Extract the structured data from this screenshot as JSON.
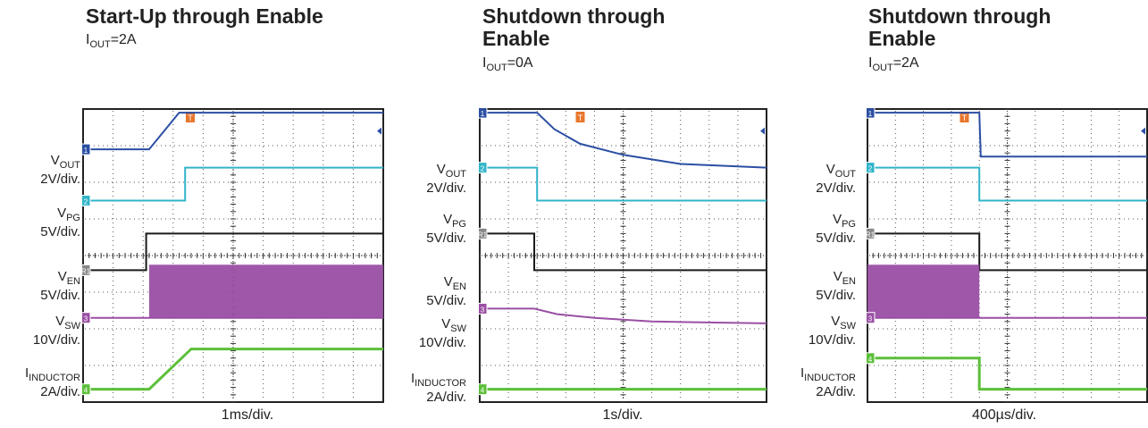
{
  "colors": {
    "vout": "#2b4fa3",
    "vpg": "#31b4c8",
    "ven": "#1a1a1a",
    "vsw": "#9a4fa4",
    "iind": "#5cbf3a",
    "trigger": "#e8762d",
    "grid": "#555555"
  },
  "labels": {
    "vout_main": "V",
    "vout_sub": "OUT",
    "vout_scale": "2V/div.",
    "vpg_main": "V",
    "vpg_sub": "PG",
    "vpg_scale": "5V/div.",
    "ven_main": "V",
    "ven_sub": "EN",
    "ven_scale": "5V/div.",
    "vsw_main": "V",
    "vsw_sub": "SW",
    "vsw_scale": "10V/div.",
    "iind_main": "I",
    "iind_sub": "INDUCTOR",
    "iind_scale": "2A/div."
  },
  "markers": {
    "ch1": "1",
    "ch2": "2",
    "ch3": "3",
    "ch4": "4",
    "ch_en": "R1",
    "trigger": "T"
  },
  "chart_data": [
    {
      "type": "line",
      "title": "Start-Up through Enable",
      "condition": {
        "main": "I",
        "sub": "OUT",
        "value": "=2A"
      },
      "time_per_div": "1ms/div.",
      "grid": true,
      "divisions": {
        "x": 10,
        "y": 8
      },
      "series": [
        {
          "name": "VOUT",
          "points": [
            [
              0,
              6.9
            ],
            [
              2.2,
              6.9
            ],
            [
              3.2,
              7.9
            ],
            [
              10,
              7.9
            ]
          ]
        },
        {
          "name": "VPG",
          "points": [
            [
              0,
              5.5
            ],
            [
              3.4,
              5.5
            ],
            [
              3.4,
              6.4
            ],
            [
              10,
              6.4
            ]
          ]
        },
        {
          "name": "VEN",
          "points": [
            [
              0,
              3.6
            ],
            [
              2.1,
              3.6
            ],
            [
              2.1,
              4.6
            ],
            [
              10,
              4.6
            ]
          ]
        },
        {
          "name": "VSW",
          "points": [
            [
              0,
              2.3
            ],
            [
              2.2,
              2.3
            ],
            [
              10,
              2.3
            ]
          ],
          "envelope_top": [
            [
              2.2,
              3.75
            ],
            [
              10,
              3.75
            ]
          ]
        },
        {
          "name": "IINDUCTOR",
          "points": [
            [
              0,
              0.35
            ],
            [
              2.2,
              0.35
            ],
            [
              3.6,
              1.45
            ],
            [
              10,
              1.45
            ]
          ]
        }
      ]
    },
    {
      "type": "line",
      "title": "Shutdown through Enable",
      "condition": {
        "main": "I",
        "sub": "OUT",
        "value": "=0A"
      },
      "time_per_div": "1s/div.",
      "grid": true,
      "divisions": {
        "x": 10,
        "y": 8
      },
      "series": [
        {
          "name": "VOUT",
          "points": [
            [
              0,
              7.9
            ],
            [
              2.0,
              7.9
            ],
            [
              2.6,
              7.45
            ],
            [
              3.5,
              7.05
            ],
            [
              5.0,
              6.75
            ],
            [
              7.0,
              6.5
            ],
            [
              10,
              6.4
            ]
          ]
        },
        {
          "name": "VPG",
          "points": [
            [
              0,
              6.4
            ],
            [
              2.0,
              6.4
            ],
            [
              2.0,
              5.5
            ],
            [
              10,
              5.5
            ]
          ]
        },
        {
          "name": "VEN",
          "points": [
            [
              0,
              4.6
            ],
            [
              1.9,
              4.6
            ],
            [
              1.9,
              3.6
            ],
            [
              10,
              3.6
            ]
          ]
        },
        {
          "name": "VSW",
          "points": [
            [
              0,
              2.55
            ],
            [
              1.9,
              2.55
            ],
            [
              2.7,
              2.4
            ],
            [
              4.0,
              2.3
            ],
            [
              6.0,
              2.2
            ],
            [
              10,
              2.15
            ]
          ]
        },
        {
          "name": "IINDUCTOR",
          "points": [
            [
              0,
              0.35
            ],
            [
              10,
              0.35
            ]
          ]
        }
      ]
    },
    {
      "type": "line",
      "title": "Shutdown through Enable",
      "condition": {
        "main": "I",
        "sub": "OUT",
        "value": "=2A"
      },
      "time_per_div": "400µs/div.",
      "grid": true,
      "divisions": {
        "x": 10,
        "y": 8
      },
      "series": [
        {
          "name": "VOUT",
          "points": [
            [
              0,
              7.9
            ],
            [
              4.0,
              7.9
            ],
            [
              4.05,
              6.7
            ],
            [
              10,
              6.7
            ]
          ]
        },
        {
          "name": "VPG",
          "points": [
            [
              0,
              6.4
            ],
            [
              4.0,
              6.4
            ],
            [
              4.0,
              5.5
            ],
            [
              10,
              5.5
            ]
          ]
        },
        {
          "name": "VEN",
          "points": [
            [
              0,
              4.6
            ],
            [
              4.0,
              4.6
            ],
            [
              4.0,
              3.6
            ],
            [
              10,
              3.6
            ]
          ]
        },
        {
          "name": "VSW",
          "points": [
            [
              0,
              2.3
            ],
            [
              4.0,
              2.3
            ],
            [
              4.0,
              2.3
            ],
            [
              10,
              2.3
            ]
          ],
          "envelope_top": [
            [
              0,
              3.75
            ],
            [
              4.0,
              3.75
            ]
          ]
        },
        {
          "name": "IINDUCTOR",
          "points": [
            [
              0,
              1.2
            ],
            [
              4.0,
              1.2
            ],
            [
              4.0,
              0.35
            ],
            [
              10,
              0.35
            ]
          ]
        }
      ]
    }
  ]
}
